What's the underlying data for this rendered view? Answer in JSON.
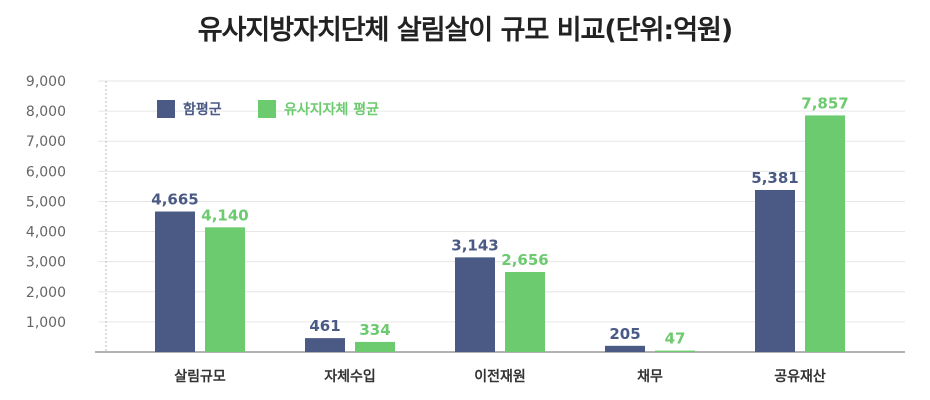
{
  "chart_data": {
    "type": "bar",
    "title": "유사지방자치단체 살림살이 규모 비교(단위:억원)",
    "xlabel": "",
    "ylabel": "",
    "categories": [
      "살림규모",
      "자체수입",
      "이전재원",
      "채무",
      "공유재산"
    ],
    "series": [
      {
        "name": "함평군",
        "color": "#4a5a85",
        "values": [
          4665,
          461,
          3143,
          205,
          5381
        ]
      },
      {
        "name": "유사지자체 평균",
        "color": "#6cca6f",
        "values": [
          4140,
          334,
          2656,
          47,
          7857
        ]
      }
    ],
    "ylim": [
      0,
      9000
    ],
    "yticks": [
      "1,000",
      "2,000",
      "3,000",
      "4,000",
      "5,000",
      "6,000",
      "7,000",
      "8,000",
      "9,000"
    ],
    "value_labels": [
      [
        "4,665",
        "461",
        "3,143",
        "205",
        "5,381"
      ],
      [
        "4,140",
        "334",
        "2,656",
        "47",
        "7,857"
      ]
    ],
    "grid": true,
    "legend_position": "top-left"
  }
}
